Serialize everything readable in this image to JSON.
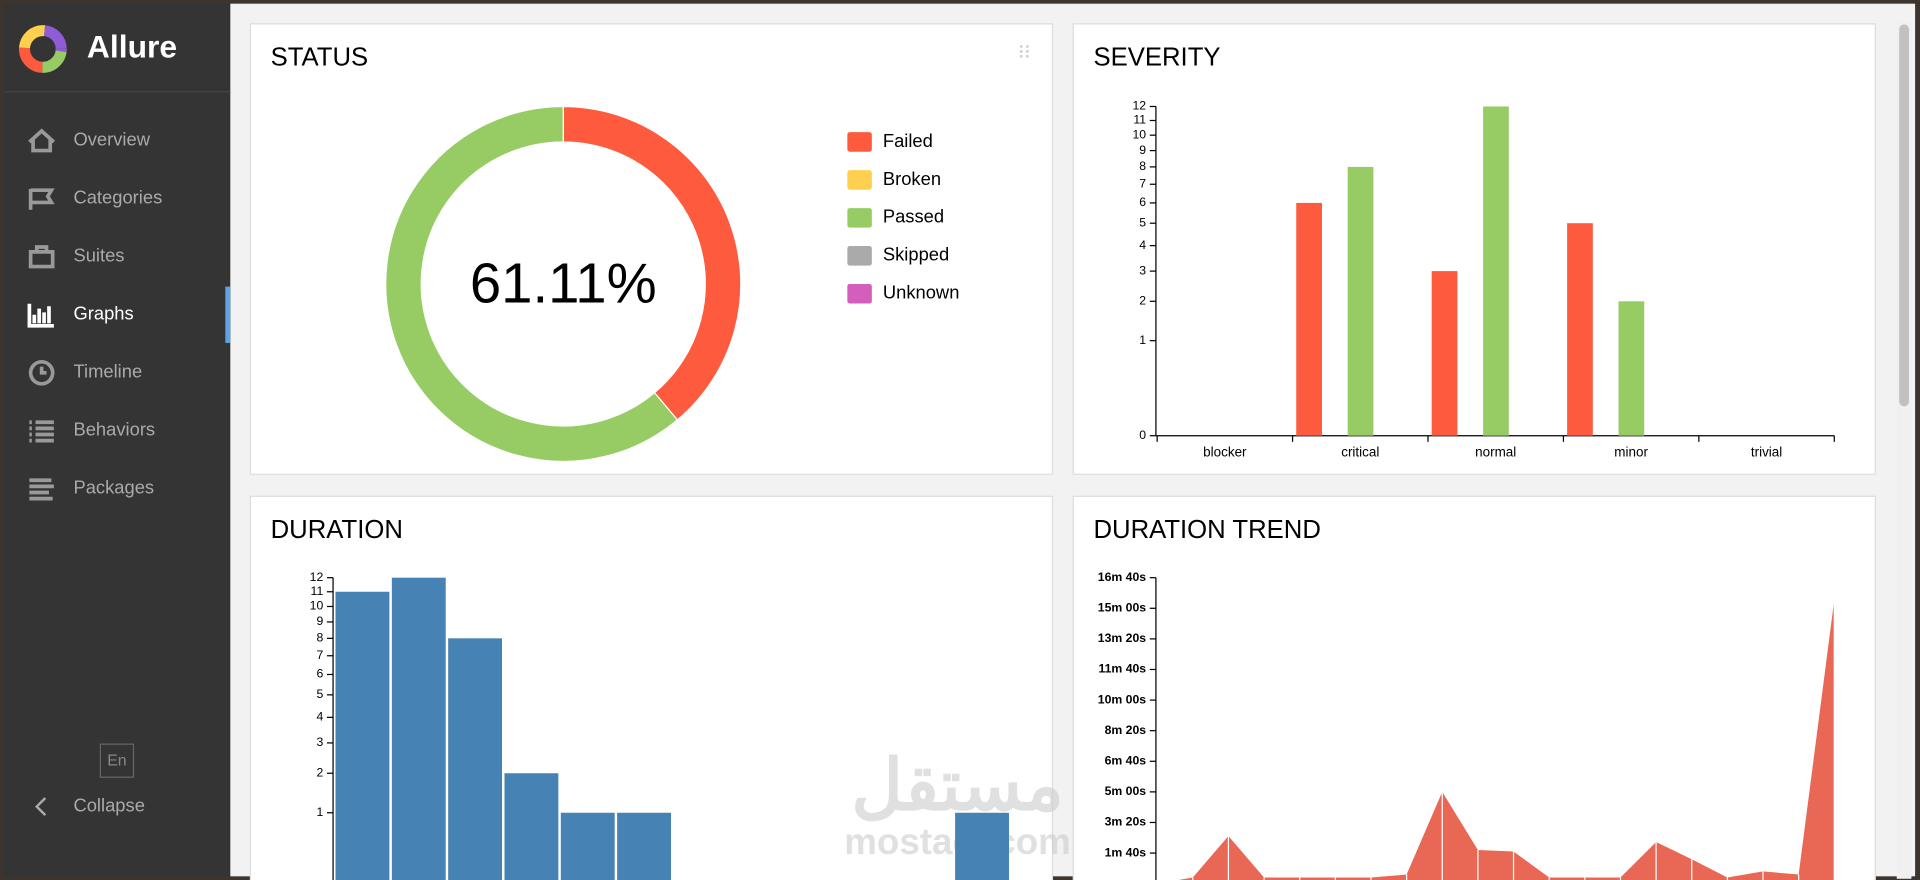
{
  "sidebar": {
    "brand": "Allure",
    "nav": [
      "Overview",
      "Categories",
      "Suites",
      "Graphs",
      "Timeline",
      "Behaviors",
      "Packages"
    ],
    "active": 3,
    "language": "En",
    "collapse": "Collapse"
  },
  "watermark": {
    "arabic": "مستقل",
    "latin": "mostaql.com"
  },
  "chart_data": [
    {
      "type": "pie",
      "title": "STATUS",
      "center_label": "61.11%",
      "categories": [
        "Failed",
        "Broken",
        "Passed",
        "Skipped",
        "Unknown"
      ],
      "values": [
        14,
        0,
        22,
        0,
        0
      ],
      "colors": [
        "#fd5a3e",
        "#ffd050",
        "#97cc64",
        "#aaaaaa",
        "#d35ebe"
      ]
    },
    {
      "type": "bar",
      "title": "SEVERITY",
      "categories": [
        "blocker",
        "critical",
        "normal",
        "minor",
        "trivial"
      ],
      "series": [
        {
          "name": "Failed",
          "color": "#fd5a3e",
          "values": [
            0,
            6,
            3,
            5,
            0
          ]
        },
        {
          "name": "Passed",
          "color": "#97cc64",
          "values": [
            0,
            8,
            12,
            2,
            0
          ]
        }
      ],
      "scale": "sqrt",
      "ylim": [
        0,
        12
      ],
      "yticks": [
        0,
        1,
        2,
        3,
        4,
        5,
        6,
        7,
        8,
        9,
        10,
        11,
        12
      ]
    },
    {
      "type": "histogram",
      "title": "DURATION",
      "values": [
        11,
        12,
        8,
        2,
        1,
        1,
        0,
        0,
        0,
        0,
        0,
        1
      ],
      "color": "#4682b4",
      "scale": "sqrt",
      "ylim": [
        0,
        12
      ],
      "yticks": [
        1,
        2,
        3,
        4,
        5,
        6,
        7,
        8,
        9,
        10,
        11,
        12
      ]
    },
    {
      "type": "area",
      "title": "DURATION TREND",
      "values": [
        0,
        20,
        156,
        20,
        20,
        20,
        20,
        30,
        300,
        110,
        105,
        20,
        20,
        20,
        136,
        80,
        20,
        40,
        30,
        928
      ],
      "color": "#e8604c",
      "ylim": [
        0,
        1000
      ],
      "yticks": [
        {
          "value": 100,
          "label": "1m 40s"
        },
        {
          "value": 200,
          "label": "3m 20s"
        },
        {
          "value": 300,
          "label": "5m 00s"
        },
        {
          "value": 400,
          "label": "6m 40s"
        },
        {
          "value": 500,
          "label": "8m 20s"
        },
        {
          "value": 600,
          "label": "10m 00s"
        },
        {
          "value": 700,
          "label": "11m 40s"
        },
        {
          "value": 800,
          "label": "13m 20s"
        },
        {
          "value": 900,
          "label": "15m 00s"
        },
        {
          "value": 1000,
          "label": "16m 40s"
        }
      ]
    }
  ]
}
